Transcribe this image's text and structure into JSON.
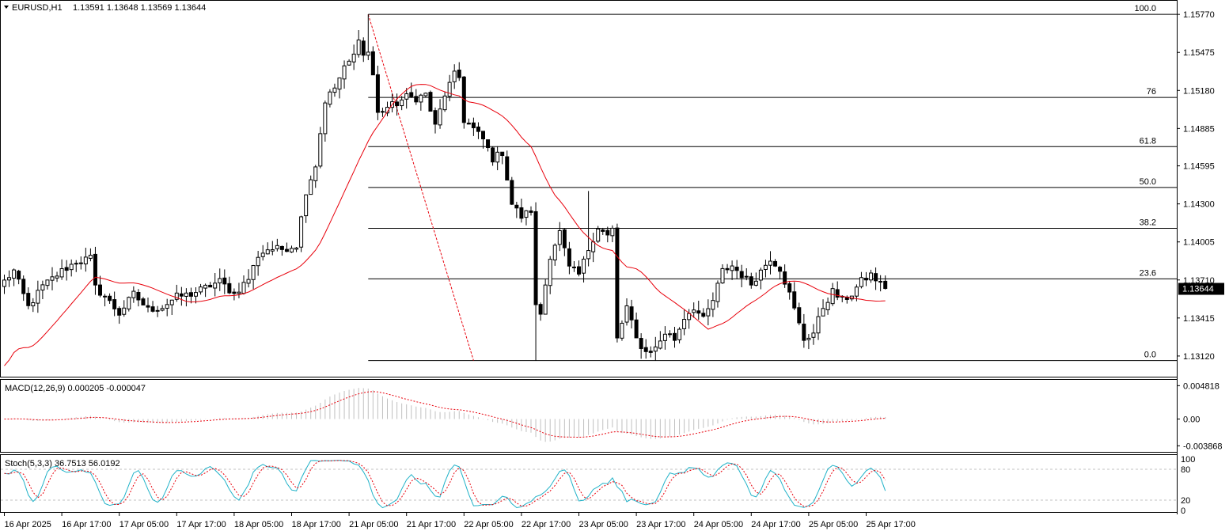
{
  "chart_data": {
    "type": "candlestick",
    "symbol_label": "EURUSD,H1",
    "header_values": "1.13591 1.13648 1.13569 1.13644",
    "current_price_label": "1.13644",
    "current_price": 1.13644,
    "price_axis": {
      "ylim": [
        1.12972,
        1.15857
      ],
      "ticks": [
        "1.15770",
        "1.15475",
        "1.15180",
        "1.14885",
        "1.14595",
        "1.14300",
        "1.14005",
        "1.13710",
        "1.13415",
        "1.13120"
      ]
    },
    "time_axis": {
      "labels": [
        "16 Apr 2025",
        "16 Apr 17:00",
        "17 Apr 05:00",
        "17 Apr 17:00",
        "18 Apr 05:00",
        "18 Apr 17:00",
        "21 Apr 05:00",
        "21 Apr 17:00",
        "22 Apr 05:00",
        "22 Apr 17:00",
        "23 Apr 05:00",
        "23 Apr 17:00",
        "24 Apr 05:00",
        "24 Apr 17:00",
        "25 Apr 05:00",
        "25 Apr 17:00"
      ],
      "label_bar_index": [
        0,
        12,
        24,
        36,
        48,
        60,
        72,
        84,
        96,
        108,
        120,
        132,
        144,
        156,
        168,
        180
      ]
    },
    "fibonacci": {
      "high": 1.1577,
      "low": 1.13085,
      "start_bar": 76,
      "levels": [
        {
          "label": "100.0",
          "ratio": 1.0
        },
        {
          "label": "76",
          "ratio": 0.76
        },
        {
          "label": "61.8",
          "ratio": 0.618
        },
        {
          "label": "50.0",
          "ratio": 0.5
        },
        {
          "label": "38.2",
          "ratio": 0.382
        },
        {
          "label": "23.6",
          "ratio": 0.236
        },
        {
          "label": "0.0",
          "ratio": 0.0
        }
      ],
      "trend_line": {
        "from_bar": 76,
        "from_price": 1.1577,
        "to_bar": 98,
        "to_price": 1.13085
      }
    },
    "close_anchors": [
      [
        0,
        1.137
      ],
      [
        2,
        1.1378
      ],
      [
        5,
        1.135
      ],
      [
        8,
        1.1366
      ],
      [
        12,
        1.1378
      ],
      [
        15,
        1.1385
      ],
      [
        18,
        1.1388
      ],
      [
        19,
        1.1365
      ],
      [
        21,
        1.1358
      ],
      [
        24,
        1.1345
      ],
      [
        27,
        1.136
      ],
      [
        30,
        1.1348
      ],
      [
        33,
        1.135
      ],
      [
        36,
        1.1358
      ],
      [
        39,
        1.136
      ],
      [
        42,
        1.1365
      ],
      [
        45,
        1.137
      ],
      [
        48,
        1.136
      ],
      [
        51,
        1.1372
      ],
      [
        53,
        1.139
      ],
      [
        55,
        1.1395
      ],
      [
        58,
        1.1395
      ],
      [
        61,
        1.1398
      ],
      [
        63,
        1.144
      ],
      [
        65,
        1.146
      ],
      [
        67,
        1.151
      ],
      [
        69,
        1.152
      ],
      [
        71,
        1.1535
      ],
      [
        73,
        1.1545
      ],
      [
        74,
        1.156
      ],
      [
        75,
        1.1545
      ],
      [
        76,
        1.1548
      ],
      [
        77,
        1.153
      ],
      [
        78,
        1.15
      ],
      [
        80,
        1.1505
      ],
      [
        82,
        1.1508
      ],
      [
        84,
        1.1513
      ],
      [
        86,
        1.1512
      ],
      [
        88,
        1.1515
      ],
      [
        90,
        1.149
      ],
      [
        92,
        1.1515
      ],
      [
        94,
        1.153
      ],
      [
        95,
        1.1528
      ],
      [
        96,
        1.1495
      ],
      [
        98,
        1.1488
      ],
      [
        100,
        1.148
      ],
      [
        102,
        1.1465
      ],
      [
        104,
        1.147
      ],
      [
        106,
        1.143
      ],
      [
        108,
        1.142
      ],
      [
        110,
        1.1425
      ],
      [
        111,
        1.135
      ],
      [
        112,
        1.1345
      ],
      [
        114,
        1.139
      ],
      [
        116,
        1.1408
      ],
      [
        118,
        1.138
      ],
      [
        120,
        1.1375
      ],
      [
        122,
        1.1395
      ],
      [
        124,
        1.1412
      ],
      [
        126,
        1.1405
      ],
      [
        127,
        1.141
      ],
      [
        128,
        1.1325
      ],
      [
        130,
        1.135
      ],
      [
        132,
        1.1325
      ],
      [
        134,
        1.1315
      ],
      [
        136,
        1.1318
      ],
      [
        138,
        1.133
      ],
      [
        140,
        1.1325
      ],
      [
        142,
        1.1342
      ],
      [
        144,
        1.135
      ],
      [
        146,
        1.134
      ],
      [
        148,
        1.1355
      ],
      [
        150,
        1.1378
      ],
      [
        152,
        1.1382
      ],
      [
        154,
        1.1375
      ],
      [
        156,
        1.1368
      ],
      [
        158,
        1.1378
      ],
      [
        160,
        1.1388
      ],
      [
        162,
        1.138
      ],
      [
        164,
        1.136
      ],
      [
        165,
        1.1348
      ],
      [
        167,
        1.1325
      ],
      [
        169,
        1.133
      ],
      [
        171,
        1.135
      ],
      [
        173,
        1.1362
      ],
      [
        175,
        1.1355
      ],
      [
        177,
        1.136
      ],
      [
        179,
        1.137
      ],
      [
        181,
        1.1375
      ],
      [
        183,
        1.1368
      ],
      [
        184,
        1.1364
      ]
    ],
    "sma_label": "",
    "macd": {
      "label": "MACD(12,26,9) 0.000205 -0.000047",
      "ticks": [
        "0.004818",
        "0.00",
        "-0.003868"
      ],
      "ylim": [
        -0.0044,
        0.0052
      ]
    },
    "stochastic": {
      "label": "Stoch(5,3,3) 36.7513 56.0192",
      "ticks": [
        "100",
        "80",
        "20",
        "0"
      ],
      "levels": [
        80,
        20
      ],
      "ylim": [
        0,
        100
      ]
    }
  },
  "colors": {
    "bull_body": "#ffffff",
    "bear_body": "#000000",
    "sma": "#e8000b",
    "fib_trend": "#e8000b",
    "macd_hist": "#c0c0c0",
    "macd_signal": "#e8000b",
    "stoch_main": "#20b2c8",
    "stoch_signal": "#e8000b",
    "price_tag_bg": "#000000"
  }
}
